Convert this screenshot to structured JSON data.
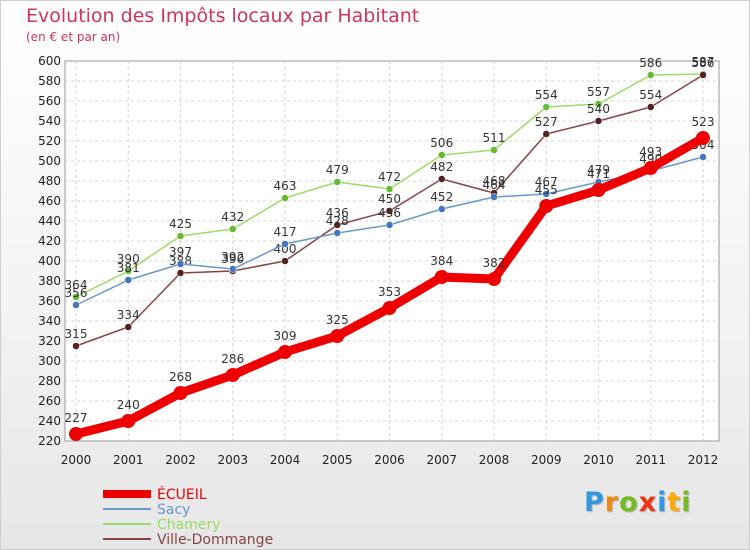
{
  "chart_data": {
    "type": "line",
    "title": "Evolution des Impôts locaux par Habitant",
    "subtitle": "(en € et par an)",
    "xlabel": "",
    "ylabel": "",
    "x": [
      "2000",
      "2001",
      "2002",
      "2003",
      "2004",
      "2005",
      "2006",
      "2007",
      "2008",
      "2009",
      "2010",
      "2011",
      "2012"
    ],
    "ylim": [
      220,
      600
    ],
    "yticks": [
      220,
      240,
      260,
      280,
      300,
      320,
      340,
      360,
      380,
      400,
      420,
      440,
      460,
      480,
      500,
      520,
      540,
      560,
      580,
      600
    ],
    "grid": true,
    "legend_position": "bottom-left",
    "series": [
      {
        "name": "Chamery",
        "color": "#99dd66",
        "marker": "#66bb33",
        "values": [
          364,
          390,
          425,
          432,
          463,
          479,
          472,
          506,
          511,
          554,
          557,
          586,
          587
        ]
      },
      {
        "name": "Ville-Dommange",
        "color": "#884444",
        "marker": "#552222",
        "values": [
          315,
          334,
          388,
          390,
          400,
          436,
          450,
          482,
          468,
          527,
          540,
          554,
          586
        ]
      },
      {
        "name": "Sacy",
        "color": "#6699cc",
        "marker": "#4477bb",
        "values": [
          356,
          381,
          397,
          392,
          417,
          428,
          436,
          452,
          464,
          467,
          479,
          490,
          504
        ]
      },
      {
        "name": "ÉCUEIL",
        "color": "#ee0000",
        "marker": "#ee0000",
        "values": [
          227,
          240,
          268,
          286,
          309,
          325,
          353,
          384,
          382,
          455,
          471,
          493,
          523
        ]
      }
    ],
    "legend": [
      "ÉCUEIL",
      "Sacy",
      "Chamery",
      "Ville-Dommange"
    ]
  },
  "logo": {
    "letters": [
      "P",
      "r",
      "o",
      "x",
      "i",
      "t",
      "i"
    ],
    "colors": [
      "#3399dd",
      "#ee8811",
      "#77bb22",
      "#ee3311",
      "#3399dd",
      "#ffaa00",
      "#77bb22"
    ]
  }
}
